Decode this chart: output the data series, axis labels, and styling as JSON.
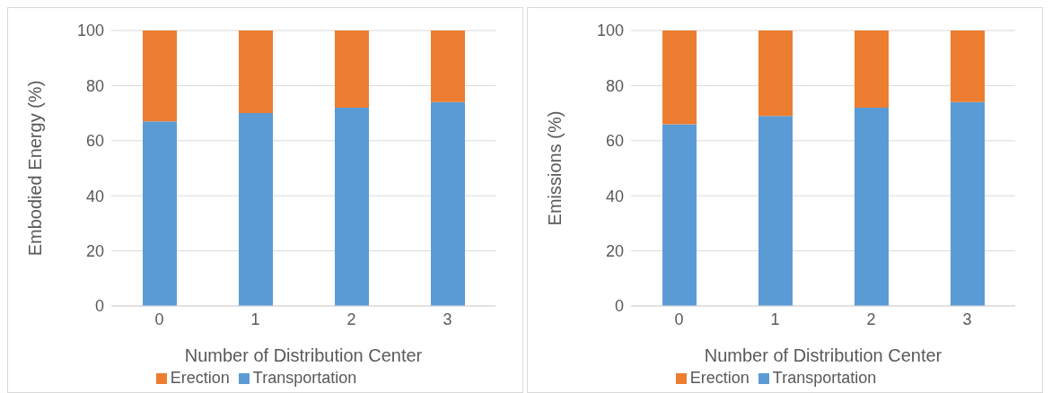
{
  "chart_data": [
    {
      "type": "bar",
      "stacked": true,
      "categories": [
        "0",
        "1",
        "2",
        "3"
      ],
      "xlabel": "Number of Distribution Center",
      "ylabel": "Embodied Energy (%)",
      "ylim": [
        0,
        100
      ],
      "yticks": [
        0,
        20,
        40,
        60,
        80,
        100
      ],
      "grid": "y",
      "legend": "bottom",
      "series": [
        {
          "name": "Transportation",
          "color": "#5b9bd5",
          "values": [
            67,
            70,
            72,
            74
          ]
        },
        {
          "name": "Erection",
          "color": "#ed7d31",
          "values": [
            33,
            30,
            28,
            26
          ]
        }
      ]
    },
    {
      "type": "bar",
      "stacked": true,
      "categories": [
        "0",
        "1",
        "2",
        "3"
      ],
      "xlabel": "Number of Distribution Center",
      "ylabel": "Emissions (%)",
      "ylim": [
        0,
        100
      ],
      "yticks": [
        0,
        20,
        40,
        60,
        80,
        100
      ],
      "grid": "y",
      "legend": "bottom",
      "series": [
        {
          "name": "Transportation",
          "color": "#5b9bd5",
          "values": [
            66,
            69,
            72,
            74
          ]
        },
        {
          "name": "Erection",
          "color": "#ed7d31",
          "values": [
            34,
            31,
            28,
            26
          ]
        }
      ]
    }
  ]
}
